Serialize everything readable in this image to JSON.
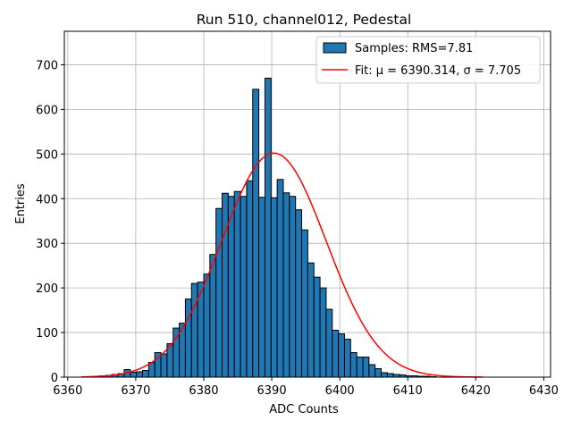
{
  "chart_data": {
    "type": "bar",
    "title": "Run 510, channel012, Pedestal",
    "xlabel": "ADC Counts",
    "ylabel": "Entries",
    "xlim": [
      6359.5,
      6431.0
    ],
    "ylim": [
      0,
      775
    ],
    "xticks": [
      6360,
      6370,
      6380,
      6390,
      6400,
      6410,
      6420,
      6430
    ],
    "yticks": [
      0,
      100,
      200,
      300,
      400,
      500,
      600,
      700
    ],
    "grid": true,
    "legend_position": "top-right",
    "histogram": {
      "name": "Samples: RMS=7.81",
      "color": "#1f77b4",
      "bin_edges_start": 6362.0,
      "bin_width": 0.9,
      "values": [
        0,
        1,
        1,
        3,
        4,
        6,
        8,
        17,
        11,
        12,
        15,
        33,
        55,
        52,
        75,
        110,
        121,
        175,
        210,
        213,
        231,
        275,
        378,
        412,
        405,
        416,
        405,
        440,
        645,
        403,
        670,
        402,
        443,
        413,
        405,
        375,
        330,
        256,
        224,
        200,
        152,
        105,
        97,
        85,
        55,
        45,
        45,
        28,
        19,
        10,
        8,
        6,
        5,
        3,
        3,
        2,
        2,
        1,
        0,
        0,
        0,
        0,
        0,
        0,
        0
      ]
    },
    "fit": {
      "name": "Fit: μ = 6390.314, σ = 7.705",
      "color": "#ff0000",
      "mu": 6390.314,
      "sigma": 7.705,
      "amplitude": 502,
      "x_range": [
        6362.0,
        6421.0
      ]
    }
  }
}
